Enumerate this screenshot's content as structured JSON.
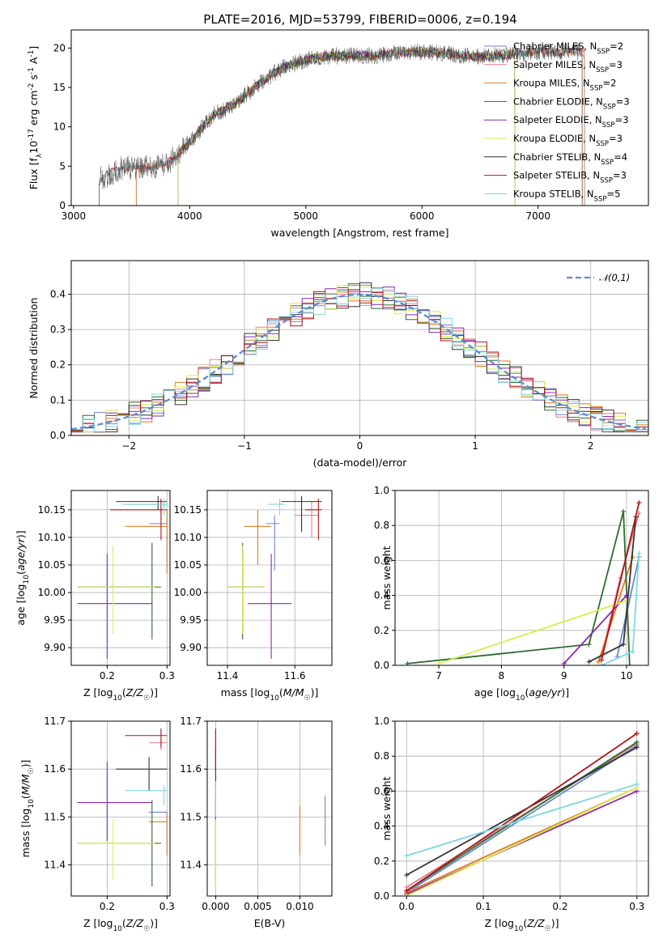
{
  "colors": {
    "Chabrier MILES": "#6b86cc",
    "Salpeter MILES": "#e87f8f",
    "Kroupa MILES": "#e07a1f",
    "Chabrier ELODIE": "#2e6b2e",
    "Salpeter ELODIE": "#8a25b3",
    "Kroupa ELODIE": "#d8ee4a",
    "Chabrier STELIB": "#333333",
    "Salpeter STELIB": "#b01515",
    "Kroupa STELIB": "#7fd8e0"
  },
  "chart_data": [
    {
      "id": "spectrum",
      "type": "line",
      "title": "PLATE=2016, MJD=53799, FIBERID=0006, z=0.194",
      "xlabel": "wavelength [Angstrom, rest frame]",
      "ylabel": "Flux [f_λ10^-17 erg cm^-2 s^-1 A^-1]",
      "xlim": [
        2980,
        7950
      ],
      "ylim": [
        0,
        22.3
      ],
      "xticks": [
        3000,
        4000,
        5000,
        6000,
        7000
      ],
      "yticks": [
        0,
        5,
        10,
        15,
        20
      ],
      "legend_position": "right",
      "legend": [
        {
          "model": "Chabrier MILES",
          "label": "Chabrier MILES, N",
          "sub": "SSP",
          "suffix": "=2"
        },
        {
          "model": "Salpeter MILES",
          "label": "Salpeter MILES, N",
          "sub": "SSP",
          "suffix": "=3"
        },
        {
          "model": "Kroupa MILES",
          "label": "Kroupa MILES, N",
          "sub": "SSP",
          "suffix": "=2"
        },
        {
          "model": "Chabrier ELODIE",
          "label": "Chabrier ELODIE, N",
          "sub": "SSP",
          "suffix": "=3"
        },
        {
          "model": "Salpeter ELODIE",
          "label": "Salpeter ELODIE, N",
          "sub": "SSP",
          "suffix": "=3"
        },
        {
          "model": "Kroupa ELODIE",
          "label": "Kroupa ELODIE, N",
          "sub": "SSP",
          "suffix": "=3"
        },
        {
          "model": "Chabrier STELIB",
          "label": "Chabrier STELIB, N",
          "sub": "SSP",
          "suffix": "=4"
        },
        {
          "model": "Salpeter STELIB",
          "label": "Salpeter STELIB, N",
          "sub": "SSP",
          "suffix": "=3"
        },
        {
          "model": "Kroupa STELIB",
          "label": "Kroupa STELIB, N",
          "sub": "SSP",
          "suffix": "=5"
        }
      ],
      "model_ranges": {
        "MILES": [
          3540,
          7400
        ],
        "ELODIE": [
          3900,
          6800
        ],
        "STELIB": [
          3220,
          7380
        ]
      },
      "continuum": [
        [
          3220,
          3.3
        ],
        [
          3400,
          4.7
        ],
        [
          3600,
          4.8
        ],
        [
          3800,
          5.2
        ],
        [
          4000,
          8.0
        ],
        [
          4200,
          11.5
        ],
        [
          4400,
          13.0
        ],
        [
          4600,
          15.5
        ],
        [
          4800,
          17.5
        ],
        [
          5000,
          18.5
        ],
        [
          5200,
          19.0
        ],
        [
          5400,
          19.0
        ],
        [
          5600,
          19.0
        ],
        [
          5800,
          19.5
        ],
        [
          6000,
          19.5
        ],
        [
          6200,
          19.3
        ],
        [
          6400,
          19.0
        ],
        [
          6600,
          19.0
        ],
        [
          6800,
          19.3
        ],
        [
          7000,
          19.5
        ],
        [
          7200,
          19.5
        ],
        [
          7400,
          19.6
        ],
        [
          7600,
          19.5
        ],
        [
          7950,
          19.3
        ]
      ]
    },
    {
      "id": "residuals",
      "type": "histogram",
      "xlabel": "(data-model)/error",
      "ylabel": "Normed distribution",
      "xlim": [
        -2.5,
        2.5
      ],
      "ylim": [
        0,
        0.495
      ],
      "xticks": [
        -2,
        -1,
        0,
        1,
        2
      ],
      "yticks": [
        0.0,
        0.1,
        0.2,
        0.3,
        0.4
      ],
      "bin_width": 0.1,
      "reference_curve": {
        "label": "N(0,1)",
        "mean": 0,
        "sigma": 1
      },
      "legend_position": "top-right",
      "grid": true
    },
    {
      "id": "age_vs_Z",
      "type": "errorbar",
      "xlabel": "Z [log10(Z/Z☉)]",
      "ylabel": "age  [log10(age/yr)]",
      "xlim": [
        0.14,
        0.305
      ],
      "ylim": [
        9.868,
        10.185
      ],
      "xticks": [
        0.2,
        0.3
      ],
      "yticks": [
        9.9,
        9.95,
        10.0,
        10.05,
        10.1,
        10.15
      ],
      "grid": true,
      "points": [
        {
          "model": "Chabrier MILES",
          "x": 0.27,
          "y": 10.125,
          "xerr": [
            0.27,
            0.3
          ],
          "yerr": [
            10.125,
            10.125
          ]
        },
        {
          "model": "Salpeter MILES",
          "x": 0.29,
          "y": 10.16,
          "xerr": [
            0.23,
            0.3
          ],
          "yerr": [
            10.14,
            10.17
          ]
        },
        {
          "model": "Kroupa MILES",
          "x": 0.3,
          "y": 10.12,
          "xerr": [
            0.23,
            0.3
          ],
          "yerr": [
            10.035,
            10.15
          ]
        },
        {
          "model": "Chabrier ELODIE",
          "x": 0.275,
          "y": 10.01,
          "xerr": [
            0.15,
            0.29
          ],
          "yerr": [
            9.915,
            10.09
          ]
        },
        {
          "model": "Salpeter ELODIE",
          "x": 0.2,
          "y": 9.98,
          "xerr": [
            0.15,
            0.275
          ],
          "yerr": [
            9.88,
            10.07
          ]
        },
        {
          "model": "Kroupa ELODIE",
          "x": 0.21,
          "y": 10.01,
          "xerr": [
            0.15,
            0.28
          ],
          "yerr": [
            9.925,
            10.085
          ]
        },
        {
          "model": "Chabrier STELIB",
          "x": 0.285,
          "y": 10.165,
          "xerr": [
            0.215,
            0.3
          ],
          "yerr": [
            10.15,
            10.175
          ]
        },
        {
          "model": "Salpeter STELIB",
          "x": 0.29,
          "y": 10.15,
          "xerr": [
            0.205,
            0.3
          ],
          "yerr": [
            10.095,
            10.17
          ]
        },
        {
          "model": "Kroupa STELIB",
          "x": 0.295,
          "y": 10.16,
          "xerr": [
            0.225,
            0.3
          ],
          "yerr": [
            10.14,
            10.17
          ]
        }
      ]
    },
    {
      "id": "age_vs_mass",
      "type": "errorbar",
      "xlabel": "mass [log10(M/M☉)]",
      "ylabel": "",
      "xlim": [
        11.34,
        11.71
      ],
      "ylim": [
        9.868,
        10.185
      ],
      "xticks": [
        11.4,
        11.6
      ],
      "yticks": [
        9.9,
        9.95,
        10.0,
        10.05,
        10.1,
        10.15
      ],
      "grid": true,
      "points": [
        {
          "model": "Chabrier MILES",
          "x": 11.54,
          "y": 10.125,
          "xerr": [
            11.515,
            11.555
          ],
          "yerr": [
            10.04,
            10.14
          ]
        },
        {
          "model": "Salpeter MILES",
          "x": 11.65,
          "y": 10.14,
          "xerr": [
            11.6,
            11.67
          ],
          "yerr": [
            10.1,
            10.165
          ]
        },
        {
          "model": "Kroupa MILES",
          "x": 11.49,
          "y": 10.12,
          "xerr": [
            11.45,
            11.53
          ],
          "yerr": [
            10.05,
            10.15
          ]
        },
        {
          "model": "Chabrier ELODIE",
          "x": 11.445,
          "y": 10.01,
          "xerr": [
            11.4,
            11.51
          ],
          "yerr": [
            9.915,
            10.09
          ]
        },
        {
          "model": "Salpeter ELODIE",
          "x": 11.53,
          "y": 9.98,
          "xerr": [
            11.46,
            11.59
          ],
          "yerr": [
            9.88,
            10.07
          ]
        },
        {
          "model": "Kroupa ELODIE",
          "x": 11.445,
          "y": 10.01,
          "xerr": [
            11.4,
            11.51
          ],
          "yerr": [
            9.925,
            10.085
          ]
        },
        {
          "model": "Chabrier STELIB",
          "x": 11.62,
          "y": 10.165,
          "xerr": [
            11.56,
            11.68
          ],
          "yerr": [
            10.11,
            10.175
          ]
        },
        {
          "model": "Salpeter STELIB",
          "x": 11.67,
          "y": 10.15,
          "xerr": [
            11.63,
            11.68
          ],
          "yerr": [
            10.095,
            10.17
          ]
        },
        {
          "model": "Kroupa STELIB",
          "x": 11.555,
          "y": 10.16,
          "xerr": [
            11.52,
            11.57
          ],
          "yerr": [
            10.14,
            10.17
          ]
        }
      ]
    },
    {
      "id": "massweight_vs_age",
      "type": "line",
      "xlabel": "age  [log10(age/yr)]",
      "ylabel": "mass weight",
      "xlim": [
        6.3,
        10.35
      ],
      "ylim": [
        0,
        1.0
      ],
      "xticks": [
        7,
        8,
        9,
        10
      ],
      "yticks": [
        0.0,
        0.2,
        0.4,
        0.6,
        0.8,
        1.0
      ],
      "grid": true,
      "series": [
        {
          "model": "Chabrier MILES",
          "x": [
            9.85,
            10.2
          ],
          "y": [
            0.05,
            0.62
          ]
        },
        {
          "model": "Salpeter MILES",
          "x": [
            9.6,
            9.9,
            10.2
          ],
          "y": [
            0.05,
            0.5,
            0.87
          ]
        },
        {
          "model": "Kroupa MILES",
          "x": [
            9.55,
            10.1
          ],
          "y": [
            0.02,
            0.62
          ]
        },
        {
          "model": "Chabrier ELODIE",
          "x": [
            6.5,
            9.4,
            9.95,
            10.05
          ],
          "y": [
            0.01,
            0.12,
            0.88,
            0.0
          ]
        },
        {
          "model": "Salpeter ELODIE",
          "x": [
            9.0,
            10.0
          ],
          "y": [
            0.01,
            0.4
          ]
        },
        {
          "model": "Kroupa ELODIE",
          "x": [
            7.0,
            10.0
          ],
          "y": [
            0.01,
            0.37
          ]
        },
        {
          "model": "Chabrier STELIB",
          "x": [
            9.4,
            9.95,
            10.15
          ],
          "y": [
            0.02,
            0.12,
            0.85
          ]
        },
        {
          "model": "Salpeter STELIB",
          "x": [
            9.6,
            10.2
          ],
          "y": [
            0.03,
            0.93
          ]
        },
        {
          "model": "Kroupa STELIB",
          "x": [
            9.6,
            10.1,
            10.2
          ],
          "y": [
            0.0,
            0.08,
            0.64
          ]
        }
      ]
    },
    {
      "id": "mass_vs_Z",
      "type": "errorbar",
      "xlabel": "Z [log10(Z/Z☉)]",
      "ylabel": "mass [log10(M/M☉)]",
      "xlim": [
        0.14,
        0.305
      ],
      "ylim": [
        11.335,
        11.7
      ],
      "xticks": [
        0.2,
        0.3
      ],
      "yticks": [
        11.4,
        11.5,
        11.6,
        11.7
      ],
      "grid": true,
      "points": [
        {
          "model": "Chabrier MILES",
          "x": 0.27,
          "y": 11.51,
          "xerr": [
            0.27,
            0.3
          ],
          "yerr": [
            11.51,
            11.51
          ]
        },
        {
          "model": "Salpeter MILES",
          "x": 0.29,
          "y": 11.655,
          "xerr": [
            0.27,
            0.3
          ],
          "yerr": [
            11.64,
            11.665
          ]
        },
        {
          "model": "Kroupa MILES",
          "x": 0.3,
          "y": 11.49,
          "xerr": [
            0.27,
            0.3
          ],
          "yerr": [
            11.42,
            11.51
          ]
        },
        {
          "model": "Chabrier ELODIE",
          "x": 0.275,
          "y": 11.445,
          "xerr": [
            0.15,
            0.29
          ],
          "yerr": [
            11.355,
            11.535
          ]
        },
        {
          "model": "Salpeter ELODIE",
          "x": 0.2,
          "y": 11.53,
          "xerr": [
            0.15,
            0.275
          ],
          "yerr": [
            11.45,
            11.615
          ]
        },
        {
          "model": "Kroupa ELODIE",
          "x": 0.21,
          "y": 11.445,
          "xerr": [
            0.15,
            0.28
          ],
          "yerr": [
            11.37,
            11.495
          ]
        },
        {
          "model": "Chabrier STELIB",
          "x": 0.27,
          "y": 11.6,
          "xerr": [
            0.215,
            0.3
          ],
          "yerr": [
            11.555,
            11.625
          ]
        },
        {
          "model": "Salpeter STELIB",
          "x": 0.29,
          "y": 11.67,
          "xerr": [
            0.23,
            0.3
          ],
          "yerr": [
            11.645,
            11.685
          ]
        },
        {
          "model": "Kroupa STELIB",
          "x": 0.295,
          "y": 11.555,
          "xerr": [
            0.23,
            0.3
          ],
          "yerr": [
            11.525,
            11.565
          ]
        }
      ]
    },
    {
      "id": "mass_vs_EBV",
      "type": "errorbar",
      "xlabel": "E(B-V)",
      "ylabel": "",
      "xlim": [
        -0.001,
        0.0138
      ],
      "ylim": [
        11.335,
        11.7
      ],
      "xticks": [
        0.0,
        0.005,
        0.01
      ],
      "xticklabels": [
        "0.000",
        "0.005",
        "0.010"
      ],
      "yticks": [
        11.4,
        11.5,
        11.6,
        11.7
      ],
      "grid": true,
      "points": [
        {
          "model": "Chabrier MILES",
          "x": 0.013,
          "y": 11.49,
          "xerr": [
            0.013,
            0.013
          ],
          "yerr": [
            11.44,
            11.545
          ]
        },
        {
          "model": "Salpeter MILES",
          "x": 0.0,
          "y": 11.655,
          "xerr": [
            0.0,
            0.0
          ],
          "yerr": [
            11.63,
            11.68
          ]
        },
        {
          "model": "Kroupa MILES",
          "x": 0.01,
          "y": 11.49,
          "xerr": [
            0.01,
            0.01
          ],
          "yerr": [
            11.42,
            11.525
          ]
        },
        {
          "model": "Chabrier ELODIE",
          "x": 0.0,
          "y": 11.445,
          "xerr": [
            0.0,
            0.0
          ],
          "yerr": [
            11.355,
            11.535
          ]
        },
        {
          "model": "Salpeter ELODIE",
          "x": 0.0,
          "y": 11.53,
          "xerr": [
            0.0,
            0.0
          ],
          "yerr": [
            11.49,
            11.57
          ]
        },
        {
          "model": "Kroupa ELODIE",
          "x": 0.0,
          "y": 11.445,
          "xerr": [
            0.0,
            0.0
          ],
          "yerr": [
            11.35,
            11.495
          ]
        },
        {
          "model": "Chabrier STELIB",
          "x": 0.0,
          "y": 11.6,
          "xerr": [
            0.0,
            0.0
          ],
          "yerr": [
            11.56,
            11.64
          ]
        },
        {
          "model": "Salpeter STELIB",
          "x": 0.0,
          "y": 11.67,
          "xerr": [
            0.0,
            0.0
          ],
          "yerr": [
            11.595,
            11.685
          ]
        },
        {
          "model": "Kroupa STELIB",
          "x": 0.0,
          "y": 11.555,
          "xerr": [
            0.0,
            0.0
          ],
          "yerr": [
            11.5,
            11.575
          ]
        }
      ]
    },
    {
      "id": "massweight_vs_Z",
      "type": "line",
      "xlabel": "Z [log10(Z/Z☉)]",
      "ylabel": "mass weight",
      "xlim": [
        -0.015,
        0.315
      ],
      "ylim": [
        0,
        1.0
      ],
      "xticks": [
        0.0,
        0.1,
        0.2,
        0.3
      ],
      "xticklabels": [
        "0.0",
        "0.1",
        "0.2",
        "0.3"
      ],
      "yticks": [
        0.0,
        0.2,
        0.4,
        0.6,
        0.8,
        1.0
      ],
      "grid": true,
      "series": [
        {
          "model": "Chabrier MILES",
          "x": [
            0.0,
            0.3
          ],
          "y": [
            0.02,
            0.86
          ]
        },
        {
          "model": "Salpeter MILES",
          "x": [
            0.0,
            0.3
          ],
          "y": [
            0.05,
            0.87
          ]
        },
        {
          "model": "Kroupa MILES",
          "x": [
            0.0,
            0.3
          ],
          "y": [
            0.02,
            0.62
          ]
        },
        {
          "model": "Chabrier ELODIE",
          "x": [
            0.0,
            0.3
          ],
          "y": [
            0.03,
            0.88
          ]
        },
        {
          "model": "Salpeter ELODIE",
          "x": [
            0.0,
            0.3
          ],
          "y": [
            0.01,
            0.6
          ]
        },
        {
          "model": "Kroupa ELODIE",
          "x": [
            0.0,
            0.3
          ],
          "y": [
            0.0,
            0.62
          ]
        },
        {
          "model": "Chabrier STELIB",
          "x": [
            0.0,
            0.3
          ],
          "y": [
            0.12,
            0.85
          ]
        },
        {
          "model": "Salpeter STELIB",
          "x": [
            0.0,
            0.3
          ],
          "y": [
            0.03,
            0.93
          ]
        },
        {
          "model": "Kroupa STELIB",
          "x": [
            0.0,
            0.3
          ],
          "y": [
            0.23,
            0.64
          ]
        }
      ]
    }
  ]
}
